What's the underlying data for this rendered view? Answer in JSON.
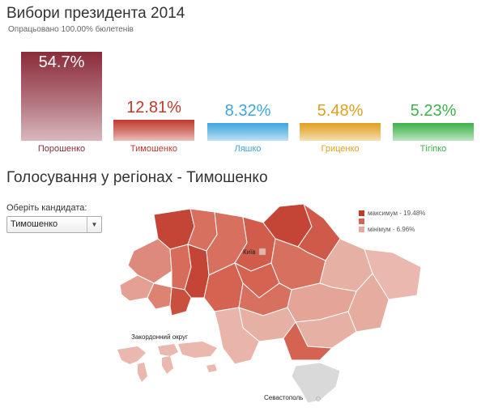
{
  "header": {
    "title": "Вибори президента 2014",
    "subtitle": "Опрацьовано 100.00% бюлетенів"
  },
  "results": [
    {
      "name": "Порошенко",
      "pct": "54.7%",
      "value": 54.7,
      "color": "#8b2b3a",
      "text_color": "#ffffff"
    },
    {
      "name": "Тимошенко",
      "pct": "12.81%",
      "value": 12.81,
      "color": "#c0392b",
      "text_color": "#c0392b"
    },
    {
      "name": "Ляшко",
      "pct": "8.32%",
      "value": 8.32,
      "color": "#3ea6dd",
      "text_color": "#3ea6dd"
    },
    {
      "name": "Гриценко",
      "pct": "5.48%",
      "value": 5.48,
      "color": "#e0a020",
      "text_color": "#e0a020"
    },
    {
      "name": "Тігіпко",
      "pct": "5.23%",
      "value": 5.23,
      "color": "#3eb24a",
      "text_color": "#3eb24a"
    }
  ],
  "regions_section": {
    "title": "Голосування у регіонах - Тимошенко",
    "select_label": "Оберіть кандидата:",
    "selected_candidate": "Тимошенко"
  },
  "map": {
    "legend_max": "максимум - 19.48%",
    "legend_min": "мінімум - 6.96%",
    "label_kyiv": "Київ",
    "label_abroad": "Закордонний округ",
    "label_sevastopol": "Севастополь",
    "color_max": "#c0392b",
    "color_min": "#e8a89f",
    "color_none": "#d9d9d9"
  }
}
